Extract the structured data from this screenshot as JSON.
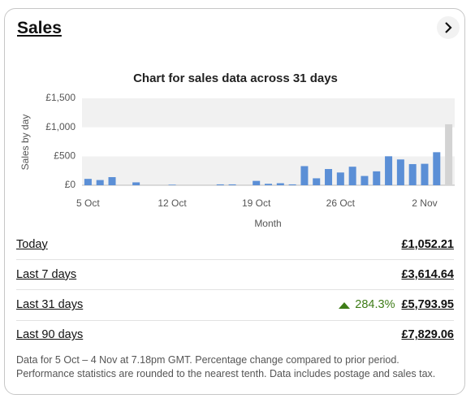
{
  "header": {
    "title": "Sales"
  },
  "chart_data": {
    "type": "bar",
    "title": "Chart for sales data across 31 days",
    "x_label": "Month",
    "y_label": "Sales by day",
    "categories": [
      "5 Oct",
      null,
      null,
      null,
      null,
      null,
      null,
      "12 Oct",
      null,
      null,
      null,
      null,
      null,
      null,
      "19 Oct",
      null,
      null,
      null,
      null,
      null,
      null,
      "26 Oct",
      null,
      null,
      null,
      null,
      null,
      null,
      "2 Nov",
      null,
      null
    ],
    "values": [
      110,
      90,
      140,
      0,
      50,
      0,
      0,
      10,
      0,
      0,
      0,
      15,
      15,
      0,
      75,
      25,
      35,
      15,
      330,
      120,
      280,
      220,
      320,
      160,
      240,
      500,
      445,
      365,
      370,
      570,
      1052.21
    ],
    "colors": [
      "#5b8fd6",
      "#5b8fd6",
      "#5b8fd6",
      "#5b8fd6",
      "#5b8fd6",
      "#5b8fd6",
      "#5b8fd6",
      "#5b8fd6",
      "#5b8fd6",
      "#5b8fd6",
      "#5b8fd6",
      "#5b8fd6",
      "#5b8fd6",
      "#5b8fd6",
      "#5b8fd6",
      "#5b8fd6",
      "#5b8fd6",
      "#5b8fd6",
      "#5b8fd6",
      "#5b8fd6",
      "#5b8fd6",
      "#5b8fd6",
      "#5b8fd6",
      "#5b8fd6",
      "#5b8fd6",
      "#5b8fd6",
      "#5b8fd6",
      "#5b8fd6",
      "#5b8fd6",
      "#5b8fd6",
      "#d3d3d3"
    ],
    "ylim": [
      0,
      1500
    ],
    "yticks": [
      {
        "value": 0,
        "label": "£0"
      },
      {
        "value": 500,
        "label": "£500"
      },
      {
        "value": 1000,
        "label": "£1,000"
      },
      {
        "value": 1500,
        "label": "£1,500"
      }
    ],
    "grid": true
  },
  "stats": [
    {
      "label": "Today",
      "value": "£1,052.21"
    },
    {
      "label": "Last 7 days",
      "value": "£3,614.64"
    },
    {
      "label": "Last 31 days",
      "change": "284.3%",
      "value": "£5,793.95"
    },
    {
      "label": "Last 90 days",
      "value": "£7,829.06"
    }
  ],
  "footnote": [
    "Data for 5 Oct – 4 Nov at 7.18pm GMT. Percentage change compared to prior period.",
    "Performance statistics are rounded to the nearest tenth. Data includes postage and sales tax."
  ]
}
